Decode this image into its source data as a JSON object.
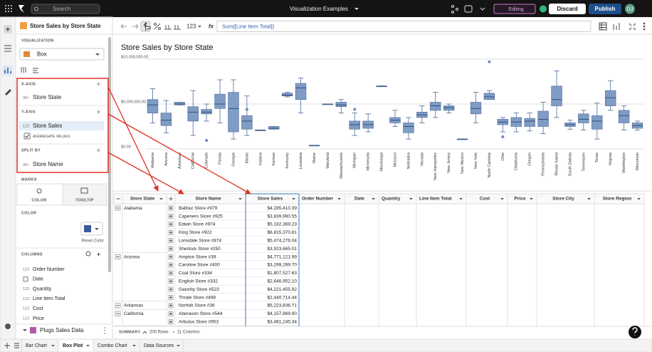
{
  "top_bar": {
    "search": "Search",
    "title": "Visualization Examples",
    "mode": "Editing",
    "discard": "Discard",
    "publish": "Publish",
    "user": "DJ"
  },
  "toolbar": {
    "format": "123",
    "fx": "fx",
    "formula": "Sum([Line Item Total])"
  },
  "sidebar": {
    "element_title": "Store Sales by Store State",
    "visualization_label": "VISUALIZATION",
    "visualization": "Box",
    "x_axis_label": "X-AXIS",
    "x_axis": {
      "type": "abc",
      "name": "Store State"
    },
    "y_axis_label": "Y-AXIS",
    "y_axis": {
      "type": "123",
      "name": "Store Sales"
    },
    "aggregate": "AGGREGATE VALUES",
    "split_label": "SPLIT BY",
    "split": {
      "type": "abc",
      "name": "Store Name"
    },
    "marks_label": "MARKS",
    "marks_tabs": [
      "COLOR",
      "TOOLTIP"
    ],
    "color_label": "COLOR",
    "reset_color": "Reset Color",
    "columns_label": "COLUMNS",
    "columns": [
      {
        "type": "123",
        "name": "Order Number"
      },
      {
        "name": "Date"
      },
      {
        "type": "123",
        "name": "Quantity"
      },
      {
        "type": "123",
        "name": "Line Item Total"
      },
      {
        "type": "123",
        "name": "Cost"
      },
      {
        "type": "123",
        "name": "Price"
      }
    ],
    "source": "Plugs Sales Data"
  },
  "chart": {
    "type": "box",
    "title": "Store Sales by Store State",
    "color": "#7f9cc4",
    "categories": [
      "Alabama",
      "Arizona",
      "Arkansas",
      "California",
      "Colorado",
      "Florida",
      "Georgia",
      "Illinois",
      "Indiana",
      "Kansas",
      "Kentucky",
      "Louisiana",
      "Maine",
      "Maryland",
      "Massachusetts",
      "Michigan",
      "Minnesota",
      "Mississippi",
      "Missouri",
      "Nebraska",
      "Nevada",
      "New Hampshire",
      "New Jersey",
      "New Mexico",
      "New York",
      "North Carolina",
      "Ohio",
      "Oklahoma",
      "Oregon",
      "Pennsylvania",
      "Rhode Island",
      "South Dakota",
      "Tennessee",
      "Texas",
      "Virginia",
      "Washington",
      "Wisconsin"
    ],
    "min": [
      2900000,
      1800000,
      4900000,
      1500000,
      3100000,
      2900000,
      1100000,
      1500000,
      2100000,
      2200000,
      5800000,
      4000000,
      400000,
      5000000,
      4000000,
      1500000,
      1900000,
      7000000,
      2500000,
      1100000,
      2900000,
      3500000,
      4000000,
      1100000,
      2900000,
      5500000,
      1900000,
      1900000,
      2000000,
      1700000,
      3500000,
      2200000,
      2100000,
      1100000,
      4300000,
      2100000,
      2100000
    ],
    "q1": [
      4000000,
      2600000,
      4900000,
      3100000,
      3900000,
      4500000,
      1900000,
      2200000,
      2100000,
      2200000,
      5900000,
      5500000,
      400000,
      5000000,
      4700000,
      2200000,
      2300000,
      7000000,
      2900000,
      1800000,
      3500000,
      4300000,
      4300000,
      1100000,
      3900000,
      5500000,
      2700000,
      2500000,
      2500000,
      2500000,
      4800000,
      2500000,
      2900000,
      2200000,
      4800000,
      2900000,
      2300000
    ],
    "median": [
      4900000,
      3200000,
      5000000,
      4100000,
      4100000,
      5000000,
      4500000,
      3100000,
      2100000,
      2300000,
      6000000,
      6800000,
      400000,
      5000000,
      4900000,
      2700000,
      2700000,
      7000000,
      3200000,
      2500000,
      3800000,
      4800000,
      4600000,
      1100000,
      4500000,
      5800000,
      3000000,
      3000000,
      3100000,
      3300000,
      5500000,
      2700000,
      3300000,
      3100000,
      5700000,
      3700000,
      2600000
    ],
    "q3": [
      5500000,
      4000000,
      5200000,
      4700000,
      4400000,
      6100000,
      6300000,
      3700000,
      2100000,
      2500000,
      6200000,
      7300000,
      400000,
      5000000,
      5200000,
      3100000,
      3100000,
      7000000,
      3500000,
      2900000,
      4100000,
      5200000,
      4800000,
      1100000,
      5200000,
      6200000,
      3300000,
      3500000,
      3400000,
      4200000,
      7000000,
      2900000,
      3900000,
      3700000,
      6500000,
      4300000,
      2900000
    ],
    "max": [
      6700000,
      5400000,
      5200000,
      6500000,
      5000000,
      7700000,
      7700000,
      5900000,
      2100000,
      2500000,
      6300000,
      7900000,
      400000,
      5000000,
      5500000,
      4000000,
      3900000,
      7000000,
      4300000,
      3500000,
      4800000,
      6300000,
      5000000,
      1100000,
      6300000,
      6500000,
      3500000,
      4000000,
      4000000,
      5200000,
      8700000,
      3200000,
      4300000,
      5100000,
      7600000,
      4800000,
      3100000
    ],
    "outliers": [
      [],
      [],
      [],
      [],
      [
        950000
      ],
      [],
      [],
      [
        4400000
      ],
      [],
      [],
      [],
      [],
      [],
      [],
      [],
      [
        4400000
      ],
      [],
      [],
      [],
      [],
      [],
      [],
      [],
      [],
      [],
      [
        9700000
      ],
      [
        1350000
      ],
      [],
      [],
      [],
      [],
      [],
      [],
      [],
      [],
      [],
      []
    ],
    "ylim": [
      0,
      10000000
    ],
    "yticks": [
      {
        "value": 0,
        "label": "$0.00"
      },
      {
        "value": 5000000,
        "label": "$5,000,000.00"
      },
      {
        "value": 10000000,
        "label": "$10,000,000.00"
      }
    ],
    "grid": true
  },
  "table": {
    "headers": [
      "Store State",
      "Store Name",
      "Store Sales",
      "Order Number",
      "Date",
      "Quantity",
      "Line Item Total",
      "Cost",
      "Price",
      "Store City",
      "Store Region"
    ],
    "groups": [
      {
        "state": "Alabama",
        "rows": [
          [
            "Balfour Store #979",
            "$4,285,410.39"
          ],
          [
            "Capeners Store #925",
            "$3,839,990.55"
          ],
          [
            "Edwin Store #974",
            "$5,182,369.23"
          ],
          [
            "King Store #922",
            "$6,815,370.81"
          ],
          [
            "Lonsdale Store #874",
            "$5,474,276.04"
          ],
          [
            "Sherlock Store #250",
            "$3,923,665.01"
          ]
        ]
      },
      {
        "state": "Arizona",
        "rows": [
          [
            "Ampton Store #39",
            "$4,771,121.99"
          ],
          [
            "Caroline Store #400",
            "$3,299,299.70"
          ],
          [
            "Coal Store #334",
            "$1,807,527.63"
          ],
          [
            "English Store #332",
            "$2,646,952.10"
          ],
          [
            "Gatorby Store #523",
            "$4,221,455.92"
          ],
          [
            "Thrale Store #498",
            "$2,440,714.44"
          ]
        ]
      },
      {
        "state": "Arkansas",
        "rows": [
          [
            "Norfolk Store #36",
            "$5,223,836.71"
          ]
        ]
      },
      {
        "state": "California",
        "rows": [
          [
            "Aberavon Store #544",
            "$4,157,869.90"
          ],
          [
            "Arbutus Store #953",
            "$3,461,245.34"
          ]
        ]
      }
    ]
  },
  "summary": {
    "label": "SUMMARY",
    "rows": "200 Rows",
    "columns": "11 Columns"
  },
  "tabs": [
    "Bar Chart",
    "Box Plot",
    "Combo Chart",
    "Data Sources"
  ]
}
